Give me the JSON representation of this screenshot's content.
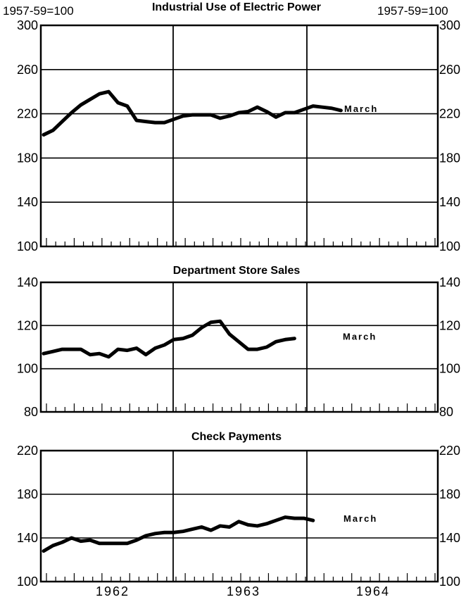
{
  "base_note": "1957-59=100",
  "x_labels": [
    "1962",
    "1963",
    "1964"
  ],
  "chart_data": [
    {
      "type": "line",
      "title": "Industrial Use of Electric Power",
      "ylim": [
        100,
        300
      ],
      "yticks": [
        100,
        140,
        180,
        220,
        260,
        300
      ],
      "annotation": "March",
      "values": [
        201,
        205,
        213,
        221,
        228,
        233,
        238,
        240,
        230,
        227,
        214,
        213,
        212,
        212,
        215,
        218,
        219,
        219,
        219,
        216,
        218,
        221,
        222,
        226,
        222,
        217,
        221,
        221,
        224,
        227,
        226,
        225,
        223
      ]
    },
    {
      "type": "line",
      "title": "Department Store Sales",
      "ylim": [
        80,
        140
      ],
      "yticks": [
        80,
        100,
        120,
        140
      ],
      "annotation": "March",
      "values": [
        107,
        108,
        109,
        109,
        109,
        106.5,
        107,
        105.5,
        109,
        108.5,
        109.5,
        106.5,
        109.5,
        111,
        113.5,
        114,
        115.5,
        119,
        121.5,
        122,
        116,
        112.5,
        109,
        109,
        110,
        112.5,
        113.5,
        114
      ]
    },
    {
      "type": "line",
      "title": "Check Payments",
      "ylim": [
        100,
        220
      ],
      "yticks": [
        100,
        140,
        180,
        220
      ],
      "annotation": "March",
      "values": [
        128,
        133,
        136,
        140,
        137,
        138,
        135,
        135,
        135,
        135,
        138,
        142,
        144,
        145,
        145,
        146,
        148,
        150,
        147,
        151,
        150,
        155,
        152,
        151,
        153,
        156,
        159,
        158,
        158,
        156
      ]
    }
  ]
}
